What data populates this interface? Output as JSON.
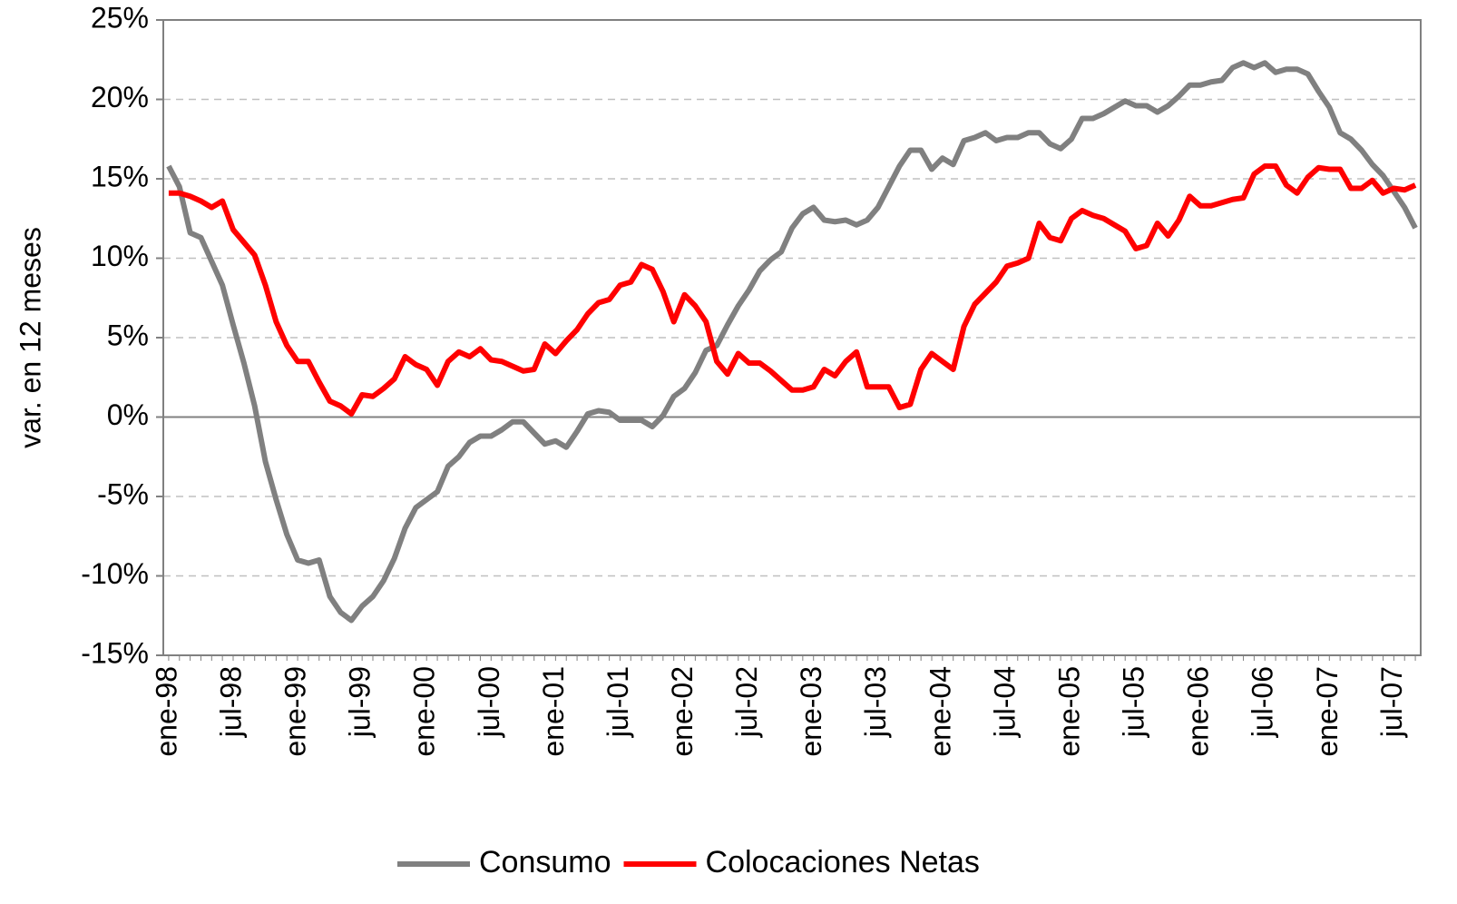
{
  "chart_data": {
    "type": "line",
    "y_label": "var. en 12 meses",
    "categories": [
      "ene-98",
      null,
      null,
      null,
      null,
      null,
      "jul-98",
      null,
      null,
      null,
      null,
      null,
      "ene-99",
      null,
      null,
      null,
      null,
      null,
      "jul-99",
      null,
      null,
      null,
      null,
      null,
      "ene-00",
      null,
      null,
      null,
      null,
      null,
      "jul-00",
      null,
      null,
      null,
      null,
      null,
      "ene-01",
      null,
      null,
      null,
      null,
      null,
      "jul-01",
      null,
      null,
      null,
      null,
      null,
      "ene-02",
      null,
      null,
      null,
      null,
      null,
      "jul-02",
      null,
      null,
      null,
      null,
      null,
      "ene-03",
      null,
      null,
      null,
      null,
      null,
      "jul-03",
      null,
      null,
      null,
      null,
      null,
      "ene-04",
      null,
      null,
      null,
      null,
      null,
      "jul-04",
      null,
      null,
      null,
      null,
      null,
      "ene-05",
      null,
      null,
      null,
      null,
      null,
      "jul-05",
      null,
      null,
      null,
      null,
      null,
      "ene-06",
      null,
      null,
      null,
      null,
      null,
      "jul-06",
      null,
      null,
      null,
      null,
      null,
      "ene-07",
      null,
      null,
      null,
      null,
      null,
      "jul-07",
      null,
      null
    ],
    "series": [
      {
        "name": "Consumo",
        "color": "#808080",
        "values": [
          15.8,
          14.5,
          11.6,
          11.3,
          9.8,
          8.3,
          5.8,
          3.4,
          0.7,
          -2.8,
          -5.2,
          -7.4,
          -9.0,
          -9.2,
          -9.0,
          -11.3,
          -12.3,
          -12.8,
          -11.9,
          -11.3,
          -10.3,
          -8.9,
          -7.0,
          -5.7,
          -5.2,
          -4.7,
          -3.1,
          -2.5,
          -1.6,
          -1.2,
          -1.2,
          -0.8,
          -0.3,
          -0.3,
          -1.0,
          -1.7,
          -1.5,
          -1.9,
          -0.9,
          0.2,
          0.4,
          0.3,
          -0.2,
          -0.2,
          -0.2,
          -0.6,
          0.1,
          1.3,
          1.8,
          2.8,
          4.2,
          4.5,
          5.8,
          7.0,
          8.0,
          9.2,
          9.9,
          10.4,
          11.9,
          12.8,
          13.2,
          12.4,
          12.3,
          12.4,
          12.1,
          12.4,
          13.2,
          14.5,
          15.8,
          16.8,
          16.8,
          15.6,
          16.3,
          15.9,
          17.4,
          17.6,
          17.9,
          17.4,
          17.6,
          17.6,
          17.9,
          17.9,
          17.2,
          16.9,
          17.5,
          18.8,
          18.8,
          19.1,
          19.5,
          19.9,
          19.6,
          19.6,
          19.2,
          19.6,
          20.2,
          20.9,
          20.9,
          21.1,
          21.2,
          22.0,
          22.3,
          22.0,
          22.3,
          21.7,
          21.9,
          21.9,
          21.6,
          20.5,
          19.5,
          17.9,
          17.5,
          16.8,
          15.9,
          15.2,
          14.2,
          13.2,
          11.9
        ]
      },
      {
        "name": "Colocaciones Netas",
        "color": "#ff0000",
        "values": [
          14.1,
          14.1,
          13.9,
          13.6,
          13.2,
          13.6,
          11.8,
          11.0,
          10.2,
          8.3,
          6.0,
          4.5,
          3.5,
          3.5,
          2.2,
          1.0,
          0.7,
          0.2,
          1.4,
          1.3,
          1.8,
          2.4,
          3.8,
          3.3,
          3.0,
          2.0,
          3.5,
          4.1,
          3.8,
          4.3,
          3.6,
          3.5,
          3.2,
          2.9,
          3.0,
          4.6,
          4.0,
          4.8,
          5.5,
          6.5,
          7.2,
          7.4,
          8.3,
          8.5,
          9.6,
          9.3,
          7.9,
          6.0,
          7.7,
          7.0,
          6.0,
          3.5,
          2.7,
          4.0,
          3.4,
          3.4,
          2.9,
          2.3,
          1.7,
          1.7,
          1.9,
          3.0,
          2.6,
          3.5,
          4.1,
          1.9,
          1.9,
          1.9,
          0.6,
          0.8,
          3.0,
          4.0,
          3.5,
          3.0,
          5.7,
          7.1,
          7.8,
          8.5,
          9.5,
          9.7,
          10.0,
          12.2,
          11.3,
          11.1,
          12.5,
          13.0,
          12.7,
          12.5,
          12.1,
          11.7,
          10.6,
          10.8,
          12.2,
          11.4,
          12.4,
          13.9,
          13.3,
          13.3,
          13.5,
          13.7,
          13.8,
          15.3,
          15.8,
          15.8,
          14.6,
          14.1,
          15.1,
          15.7,
          15.6,
          15.6,
          14.4,
          14.4,
          14.9,
          14.1,
          14.4,
          14.3,
          14.6
        ]
      }
    ],
    "ylim": [
      -15,
      25
    ],
    "yticks": [
      {
        "value": -15,
        "label": "-15%"
      },
      {
        "value": -10,
        "label": "-10%"
      },
      {
        "value": -5,
        "label": "-5%"
      },
      {
        "value": 0,
        "label": "0%"
      },
      {
        "value": 5,
        "label": "5%"
      },
      {
        "value": 10,
        "label": "10%"
      },
      {
        "value": 15,
        "label": "15%"
      },
      {
        "value": 20,
        "label": "20%"
      },
      {
        "value": 25,
        "label": "25%"
      }
    ],
    "grid": true,
    "legend": "bottom"
  }
}
